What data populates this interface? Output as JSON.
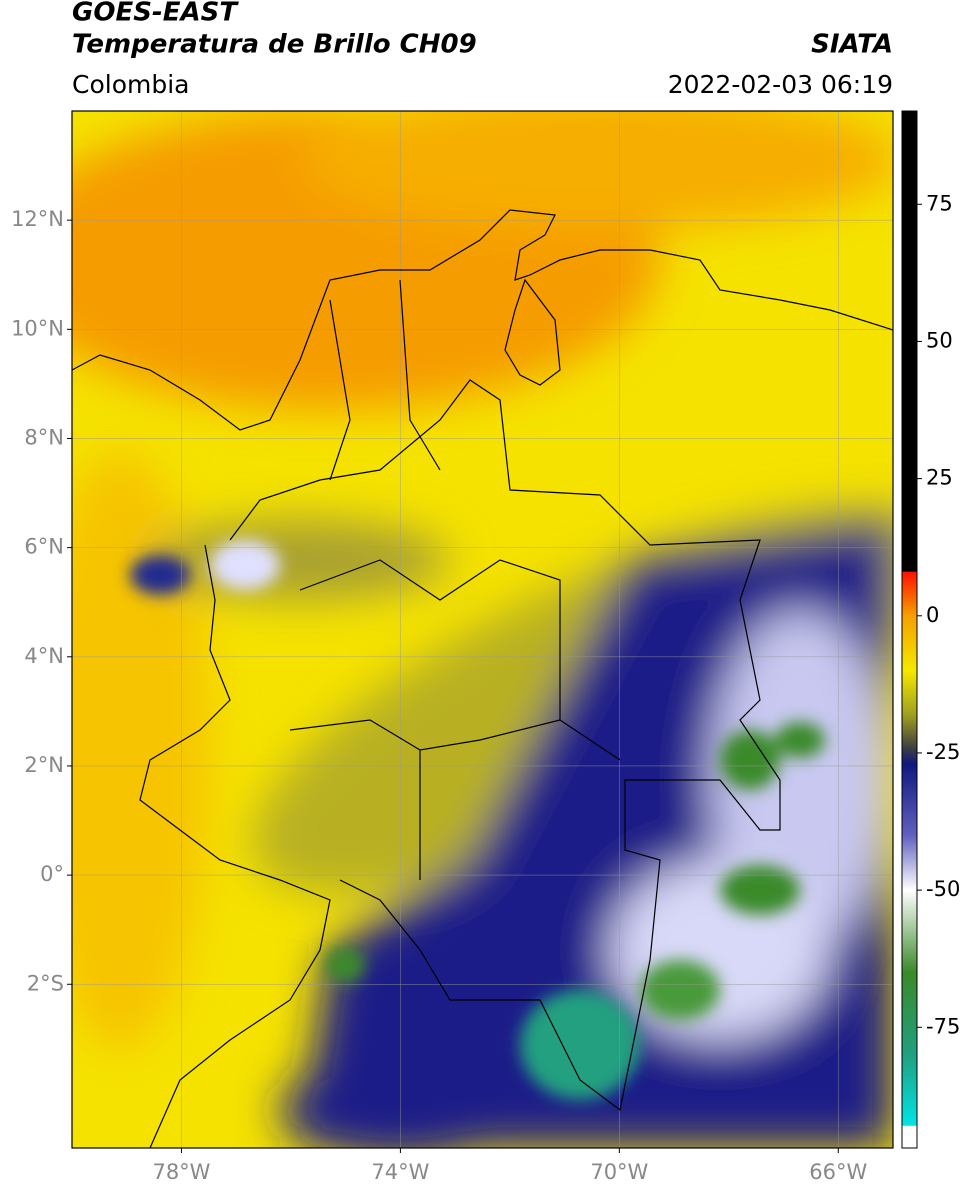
{
  "header": {
    "title": "GOES-EAST",
    "subtitle": "Temperatura de Brillo CH09",
    "region": "Colombia",
    "source": "SIATA",
    "datetime": "2022-02-03 06:19"
  },
  "map": {
    "xlim": [
      -80,
      -65
    ],
    "ylim": [
      -5,
      14
    ],
    "xticks": [
      {
        "value": -78,
        "label": "78°W"
      },
      {
        "value": -74,
        "label": "74°W"
      },
      {
        "value": -70,
        "label": "70°W"
      },
      {
        "value": -66,
        "label": "66°W"
      }
    ],
    "yticks": [
      {
        "value": 12,
        "label": "12°N"
      },
      {
        "value": 10,
        "label": "10°N"
      },
      {
        "value": 8,
        "label": "8°N"
      },
      {
        "value": 6,
        "label": "6°N"
      },
      {
        "value": 4,
        "label": "4°N"
      },
      {
        "value": 2,
        "label": "2°N"
      },
      {
        "value": 0,
        "label": "0°"
      },
      {
        "value": -2,
        "label": "2°S"
      }
    ],
    "grid": true
  },
  "colorbar": {
    "lim": [
      -97,
      92
    ],
    "ticks": [
      75,
      50,
      25,
      0,
      -25,
      -50,
      -75
    ],
    "colormap": [
      {
        "value": -97,
        "color": "#ffffff"
      },
      {
        "value": -93,
        "color": "#ffffff"
      },
      {
        "value": -92.9,
        "color": "#00e5e5"
      },
      {
        "value": -80,
        "color": "#20a080"
      },
      {
        "value": -65,
        "color": "#3a8a2a"
      },
      {
        "value": -50,
        "color": "#ffffff"
      },
      {
        "value": -40,
        "color": "#6060c0"
      },
      {
        "value": -27,
        "color": "#101880"
      },
      {
        "value": -24,
        "color": "#404040"
      },
      {
        "value": -18,
        "color": "#a0a020"
      },
      {
        "value": -10,
        "color": "#f5e800"
      },
      {
        "value": 0,
        "color": "#f5a000"
      },
      {
        "value": 8,
        "color": "#ff1000"
      },
      {
        "value": 8.1,
        "color": "#000000"
      },
      {
        "value": 92,
        "color": "#000000"
      }
    ]
  }
}
